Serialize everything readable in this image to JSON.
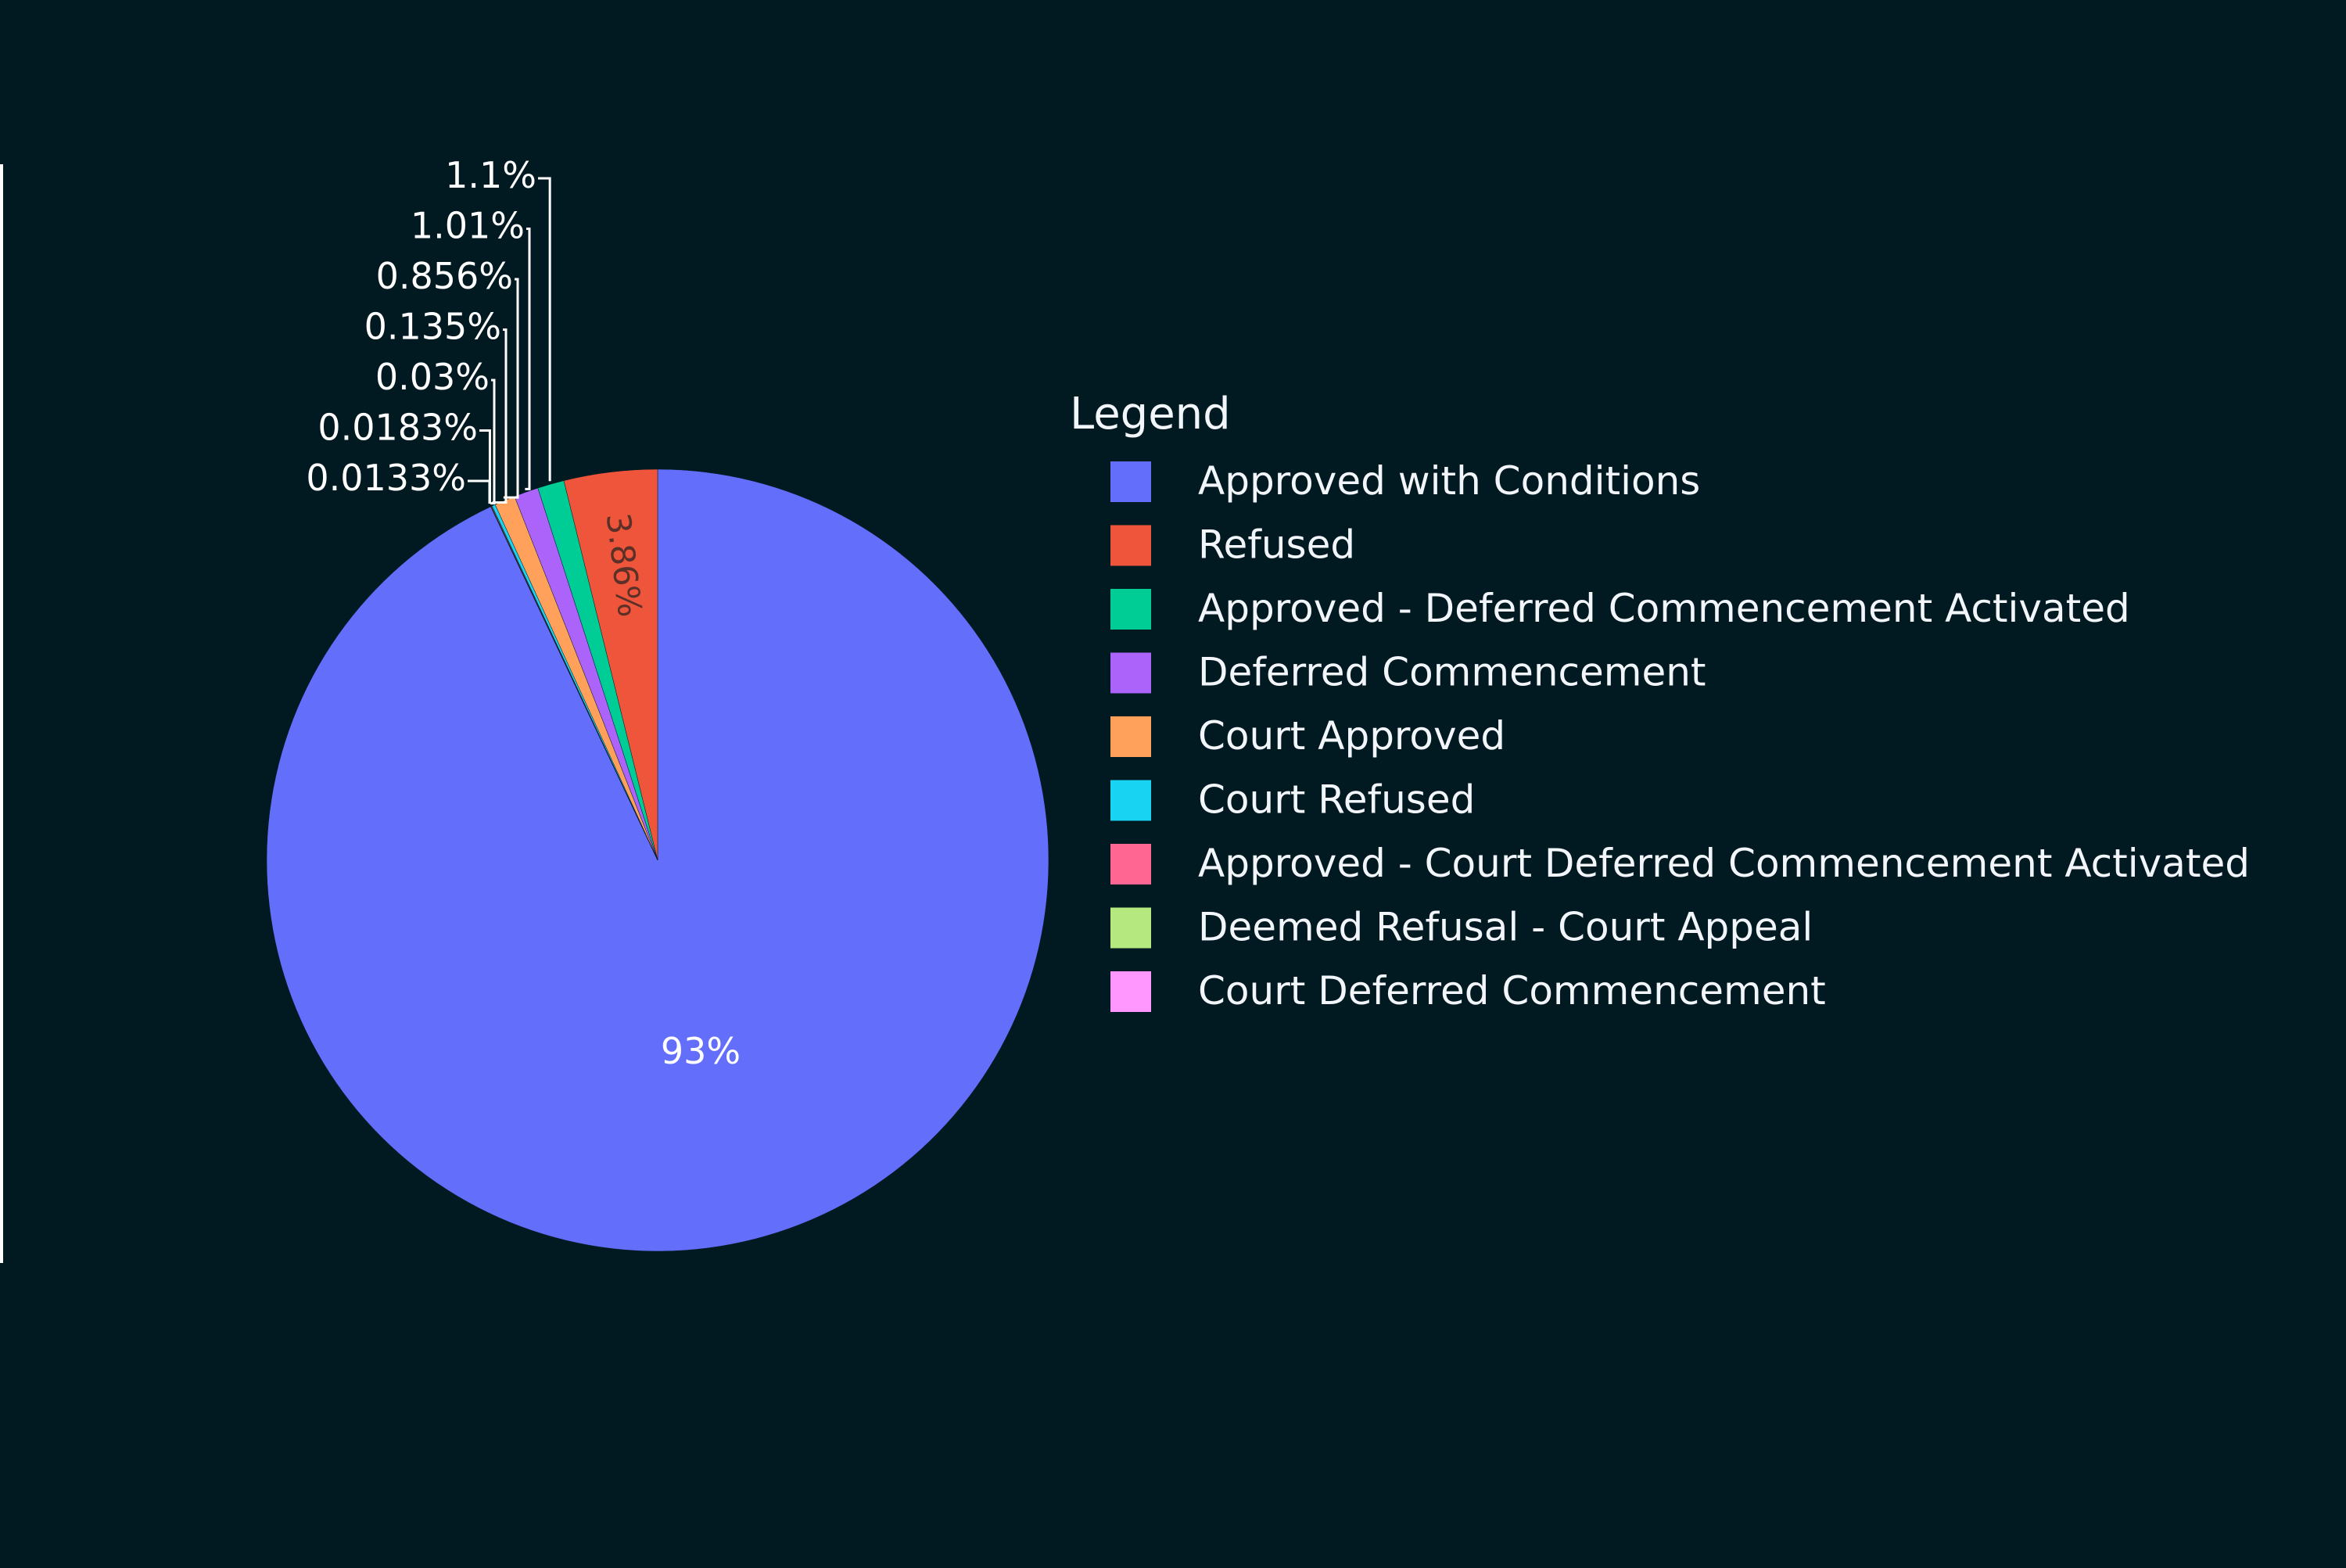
{
  "chart_data": {
    "type": "pie",
    "legend_title": "Legend",
    "legend_position": "right",
    "slices": [
      {
        "name": "Approved with Conditions",
        "value": 93,
        "label": "93%",
        "color": "#636efa"
      },
      {
        "name": "Refused",
        "value": 3.86,
        "label": "3.86%",
        "color": "#ef553b"
      },
      {
        "name": "Approved - Deferred Commencement Activated",
        "value": 1.1,
        "label": "1.1%",
        "color": "#00cc96"
      },
      {
        "name": "Deferred Commencement",
        "value": 1.01,
        "label": "1.01%",
        "color": "#ab63fa"
      },
      {
        "name": "Court Approved",
        "value": 0.856,
        "label": "0.856%",
        "color": "#ffa15a"
      },
      {
        "name": "Court Refused",
        "value": 0.135,
        "label": "0.135%",
        "color": "#19d3f3"
      },
      {
        "name": "Approved - Court Deferred Commencement Activated",
        "value": 0.03,
        "label": "0.03%",
        "color": "#ff6692"
      },
      {
        "name": "Deemed Refusal - Court Appeal",
        "value": 0.0183,
        "label": "0.0183%",
        "color": "#b6e880"
      },
      {
        "name": "Court Deferred Commencement",
        "value": 0.0133,
        "label": "0.0133%",
        "color": "#ff97ff"
      }
    ]
  }
}
